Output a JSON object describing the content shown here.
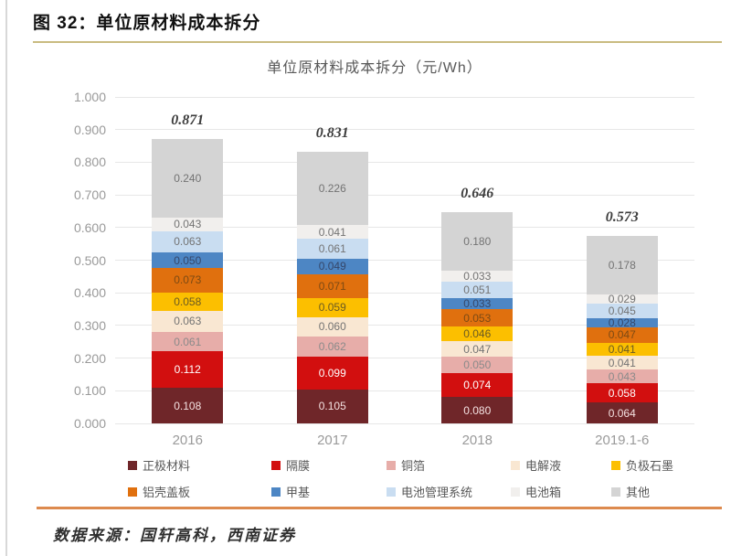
{
  "figure": {
    "label": "图 32：单位原材料成本拆分",
    "source": "数据来源：国轩高科，西南证券"
  },
  "colors": {
    "header_rule": "#c9bb80",
    "footer_rule": "#dd8a4e",
    "grid": "#e7e7e7",
    "axis_text": "#9a9a9a",
    "title_text": "#595959",
    "total_text": "#3d3d3d"
  },
  "chart_data": {
    "type": "bar",
    "stacked": true,
    "title": "单位原材料成本拆分（元/Wh）",
    "categories": [
      "2016",
      "2017",
      "2018",
      "2019.1-6"
    ],
    "totals": [
      0.871,
      0.831,
      0.646,
      0.573
    ],
    "series": [
      {
        "name": "正极材料",
        "color": "#6f2629",
        "label_color": "#f4e2e2",
        "values": [
          0.108,
          0.105,
          0.08,
          0.064
        ]
      },
      {
        "name": "隔膜",
        "color": "#d20f0f",
        "label_color": "#ffffff",
        "values": [
          0.112,
          0.099,
          0.074,
          0.058
        ]
      },
      {
        "name": "铜箔",
        "color": "#e7ada9",
        "label_color": "#8a8a8a",
        "values": [
          0.061,
          0.062,
          0.05,
          0.043
        ]
      },
      {
        "name": "电解液",
        "color": "#f9e7d2",
        "label_color": "#737373",
        "values": [
          0.063,
          0.06,
          0.047,
          0.041
        ]
      },
      {
        "name": "负极石墨",
        "color": "#fcbf00",
        "label_color": "#6a5a22",
        "values": [
          0.058,
          0.059,
          0.046,
          0.041
        ]
      },
      {
        "name": "铝壳盖板",
        "color": "#e0700e",
        "label_color": "#7c4a14",
        "values": [
          0.073,
          0.071,
          0.053,
          0.047
        ]
      },
      {
        "name": "甲基",
        "color": "#4d86c4",
        "label_color": "#35476a",
        "values": [
          0.05,
          0.049,
          0.033,
          0.028
        ]
      },
      {
        "name": "电池管理系统",
        "color": "#c9ddf1",
        "label_color": "#737373",
        "values": [
          0.063,
          0.061,
          0.051,
          0.045
        ]
      },
      {
        "name": "电池箱",
        "color": "#f1efed",
        "label_color": "#737373",
        "values": [
          0.043,
          0.041,
          0.033,
          0.029
        ]
      },
      {
        "name": "其他",
        "color": "#d4d4d4",
        "label_color": "#737373",
        "values": [
          0.24,
          0.226,
          0.18,
          0.178
        ]
      }
    ],
    "y_ticks": [
      "1.000",
      "0.900",
      "0.800",
      "0.700",
      "0.600",
      "0.500",
      "0.400",
      "0.300",
      "0.200",
      "0.100",
      "0.000"
    ],
    "ylim": [
      0,
      1.0
    ],
    "grid": true,
    "legend_position": "bottom"
  }
}
